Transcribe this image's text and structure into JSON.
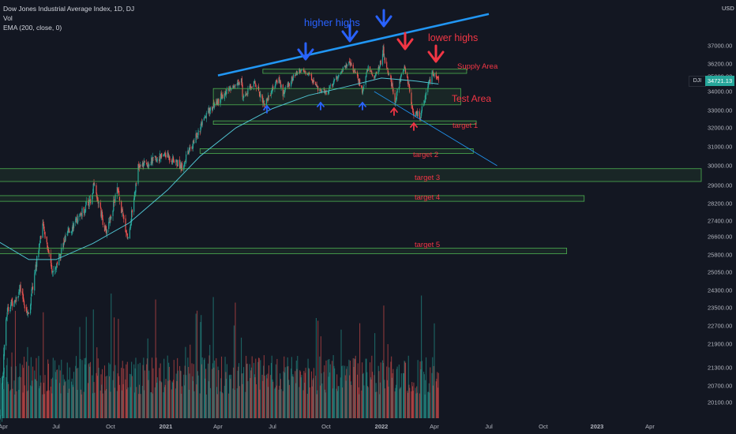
{
  "legend": {
    "title": "Dow Jones Industrial Average Index, 1D, DJ",
    "vol": "Vol",
    "ema": "EMA (200, close, 0)"
  },
  "currency": "USD",
  "symbol_tag": "DJI",
  "price_tag": "34721.13",
  "annotations": {
    "higher_highs": "higher highs",
    "lower_highs": "lower highs",
    "supply_area": "Supply  Area",
    "test_area": "Test Area",
    "targets": [
      "target 1",
      "target 2",
      "target 3",
      "target 4",
      "target 5"
    ]
  },
  "colors": {
    "background": "#131722",
    "up_candle": "#26a69a",
    "down_candle": "#ef5350",
    "ema": "#4fc3d0",
    "trendline": "#2196f3",
    "zone_border": "#4caf50",
    "annotation_red": "#f23645",
    "annotation_blue": "#2962ff",
    "price_tag_bg": "#26a69a"
  },
  "chart_data": {
    "type": "candlestick",
    "symbol": "DJI",
    "interval": "1D",
    "ylim": [
      19700,
      38600
    ],
    "y_ticks": [
      37000,
      36200,
      35000,
      34000,
      33000,
      32000,
      31000,
      30000,
      29000,
      28200,
      27400,
      26600,
      25800,
      25050,
      24300,
      23500,
      22700,
      21900,
      21300,
      20700,
      20100
    ],
    "y_tick_labels": [
      "37000.00",
      "36200.00",
      "35000.00",
      "34000.00",
      "33000.00",
      "32000.00",
      "31000.00",
      "30000.00",
      "29000.00",
      "28200.00",
      "27400.00",
      "26600.00",
      "25800.00",
      "25050.00",
      "24300.00",
      "23500.00",
      "22700.00",
      "21900.00",
      "21300.00",
      "20700.00",
      "20100.00"
    ],
    "x_ticks": [
      "Apr",
      "Jul",
      "Oct",
      "2021",
      "Apr",
      "Jul",
      "Oct",
      "2022",
      "Apr",
      "Jul",
      "Oct",
      "2023",
      "Apr"
    ],
    "x_tick_dates": [
      "2020-04-01",
      "2020-07-01",
      "2020-10-01",
      "2021-01-01",
      "2021-04-01",
      "2021-07-01",
      "2021-10-01",
      "2022-01-01",
      "2022-04-01",
      "2022-07-01",
      "2022-10-01",
      "2023-01-01",
      "2023-04-01"
    ],
    "last_price": 34721.13,
    "price_path": [
      [
        "2020-03-23",
        18600
      ],
      [
        "2020-04-08",
        23400
      ],
      [
        "2020-04-30",
        24300
      ],
      [
        "2020-05-14",
        23200
      ],
      [
        "2020-06-08",
        27200
      ],
      [
        "2020-06-26",
        25000
      ],
      [
        "2020-07-21",
        26800
      ],
      [
        "2020-08-31",
        28500
      ],
      [
        "2020-09-03",
        29100
      ],
      [
        "2020-09-23",
        26800
      ],
      [
        "2020-10-12",
        28800
      ],
      [
        "2020-10-30",
        26500
      ],
      [
        "2020-11-16",
        29900
      ],
      [
        "2020-12-31",
        30600
      ],
      [
        "2021-01-29",
        29950
      ],
      [
        "2021-03-17",
        33000
      ],
      [
        "2021-04-15",
        34000
      ],
      [
        "2021-05-10",
        34800
      ],
      [
        "2021-05-12",
        33600
      ],
      [
        "2021-06-01",
        34600
      ],
      [
        "2021-06-18",
        33300
      ],
      [
        "2021-07-12",
        34900
      ],
      [
        "2021-07-19",
        33900
      ],
      [
        "2021-08-16",
        35600
      ],
      [
        "2021-09-01",
        35300
      ],
      [
        "2021-09-20",
        33900
      ],
      [
        "2021-10-04",
        34000
      ],
      [
        "2021-11-08",
        36400
      ],
      [
        "2021-12-01",
        34000
      ],
      [
        "2021-12-10",
        35900
      ],
      [
        "2021-12-20",
        34900
      ],
      [
        "2022-01-04",
        36800
      ],
      [
        "2022-01-24",
        33500
      ],
      [
        "2022-02-09",
        35800
      ],
      [
        "2022-02-24",
        32900
      ],
      [
        "2022-03-08",
        32700
      ],
      [
        "2022-03-29",
        35300
      ],
      [
        "2022-04-08",
        34721
      ]
    ],
    "ema_path": [
      [
        "2020-03-23",
        26400
      ],
      [
        "2020-05-15",
        25600
      ],
      [
        "2020-07-01",
        25600
      ],
      [
        "2020-09-01",
        26300
      ],
      [
        "2020-11-01",
        27300
      ],
      [
        "2021-01-04",
        28800
      ],
      [
        "2021-03-01",
        30500
      ],
      [
        "2021-05-01",
        32000
      ],
      [
        "2021-07-01",
        33100
      ],
      [
        "2021-09-01",
        33800
      ],
      [
        "2021-11-01",
        34300
      ],
      [
        "2022-01-01",
        34900
      ],
      [
        "2022-03-01",
        34700
      ],
      [
        "2022-04-08",
        34500
      ]
    ],
    "lines": [
      {
        "name": "upper trendline",
        "from": [
          "2021-04-01",
          35100
        ],
        "to": [
          "2022-07-01",
          38400
        ]
      },
      {
        "name": "descending line",
        "from": [
          "2021-12-20",
          34000
        ],
        "to": [
          "2022-07-15",
          30000
        ]
      }
    ],
    "zones": [
      {
        "label": "Supply  Area",
        "y": [
          35300,
          35700
        ],
        "x": [
          "2021-06-15",
          "2022-05-25"
        ]
      },
      {
        "label": "Test Area",
        "y": [
          33300,
          34200
        ],
        "x": [
          "2021-03-24",
          "2022-05-15"
        ]
      },
      {
        "label": "target 1",
        "y": [
          32200,
          32400
        ],
        "x": [
          "2021-03-24",
          "2022-06-10"
        ]
      },
      {
        "label": "target 2",
        "y": [
          30650,
          30900
        ],
        "x": [
          "2021-03-01",
          "2022-06-05"
        ]
      },
      {
        "label": "target 3",
        "y": [
          29200,
          29850
        ],
        "x": [
          "2020-03-01",
          "2023-07-01"
        ]
      },
      {
        "label": "target 4",
        "y": [
          28300,
          28550
        ],
        "x": [
          "2020-03-01",
          "2022-12-10"
        ]
      },
      {
        "label": "target 5",
        "y": [
          25850,
          26100
        ],
        "x": [
          "2020-03-01",
          "2022-11-10"
        ]
      }
    ]
  }
}
